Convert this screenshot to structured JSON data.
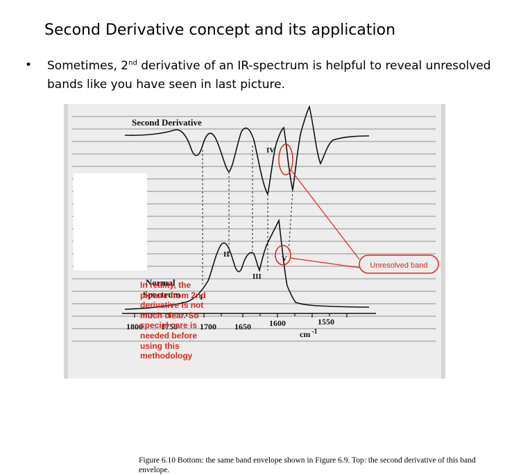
{
  "slide": {
    "title": "Second Derivative concept and its application",
    "bullet_pre": "Sometimes, 2",
    "bullet_sup": "nd",
    "bullet_post": " derivative of an IR-spectrum is helpful to reveal unresolved bands like you have seen in last picture."
  },
  "figure": {
    "top_label": "Second  Derivative",
    "bottom_label_line1": "Normal",
    "bottom_label_line2": "Spectrum",
    "band_labels": [
      "I",
      "II",
      "III",
      "IV",
      "V"
    ],
    "x_ticks": [
      "1800",
      "1750",
      "1700",
      "1650",
      "1600",
      "1550"
    ],
    "x_unit": "cm",
    "x_unit_sup": "-1",
    "caption": "Figure 6.10  Bottom: the same band envelope shown in Figure 6.9. Top: the second derivative of this band envelope.",
    "red_note": "In reality, the picture from 2nd derivative is not much clear. So special care is needed before using this methodology",
    "callout_label": "Unresolved band",
    "accent_color": "#e0261a"
  }
}
